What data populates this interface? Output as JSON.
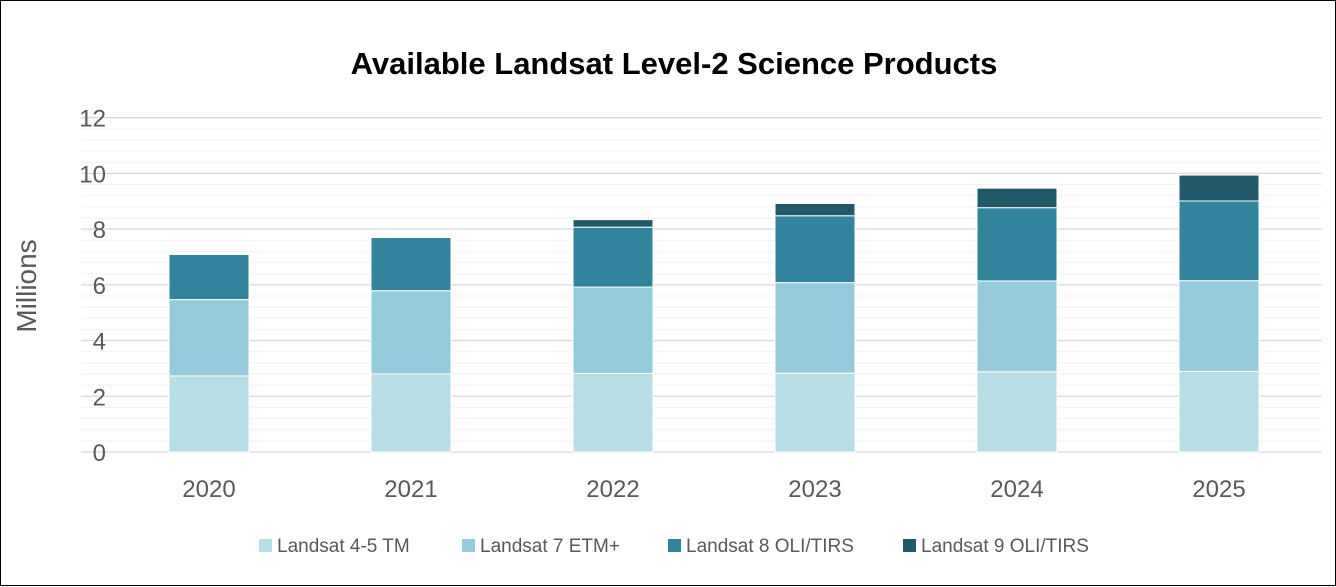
{
  "chart_data": {
    "type": "bar",
    "stacked": true,
    "title": "Available Landsat Level-2 Science Products",
    "xlabel": "",
    "ylabel": "Millions",
    "ylim": [
      0,
      12
    ],
    "yticks": [
      "0",
      "2",
      "4",
      "6",
      "8",
      "10",
      "12"
    ],
    "grid": true,
    "legend": "bottom",
    "categories": [
      "2020",
      "2021",
      "2022",
      "2023",
      "2024",
      "2025"
    ],
    "series": [
      {
        "name": "Landsat 4-5 TM",
        "color": "#b7dde7",
        "values": [
          2.73,
          2.8,
          2.82,
          2.83,
          2.88,
          2.89
        ]
      },
      {
        "name": "Landsat 7 ETM+",
        "color": "#95cbdc",
        "values": [
          2.74,
          2.99,
          3.1,
          3.25,
          3.26,
          3.26
        ]
      },
      {
        "name": "Landsat 8 OLI/TIRS",
        "color": "#31849b",
        "values": [
          1.62,
          1.91,
          2.15,
          2.4,
          2.63,
          2.86
        ]
      },
      {
        "name": "Landsat 9 OLI/TIRS",
        "color": "#215968",
        "values": [
          0,
          0,
          0.27,
          0.44,
          0.7,
          0.93
        ]
      }
    ]
  }
}
